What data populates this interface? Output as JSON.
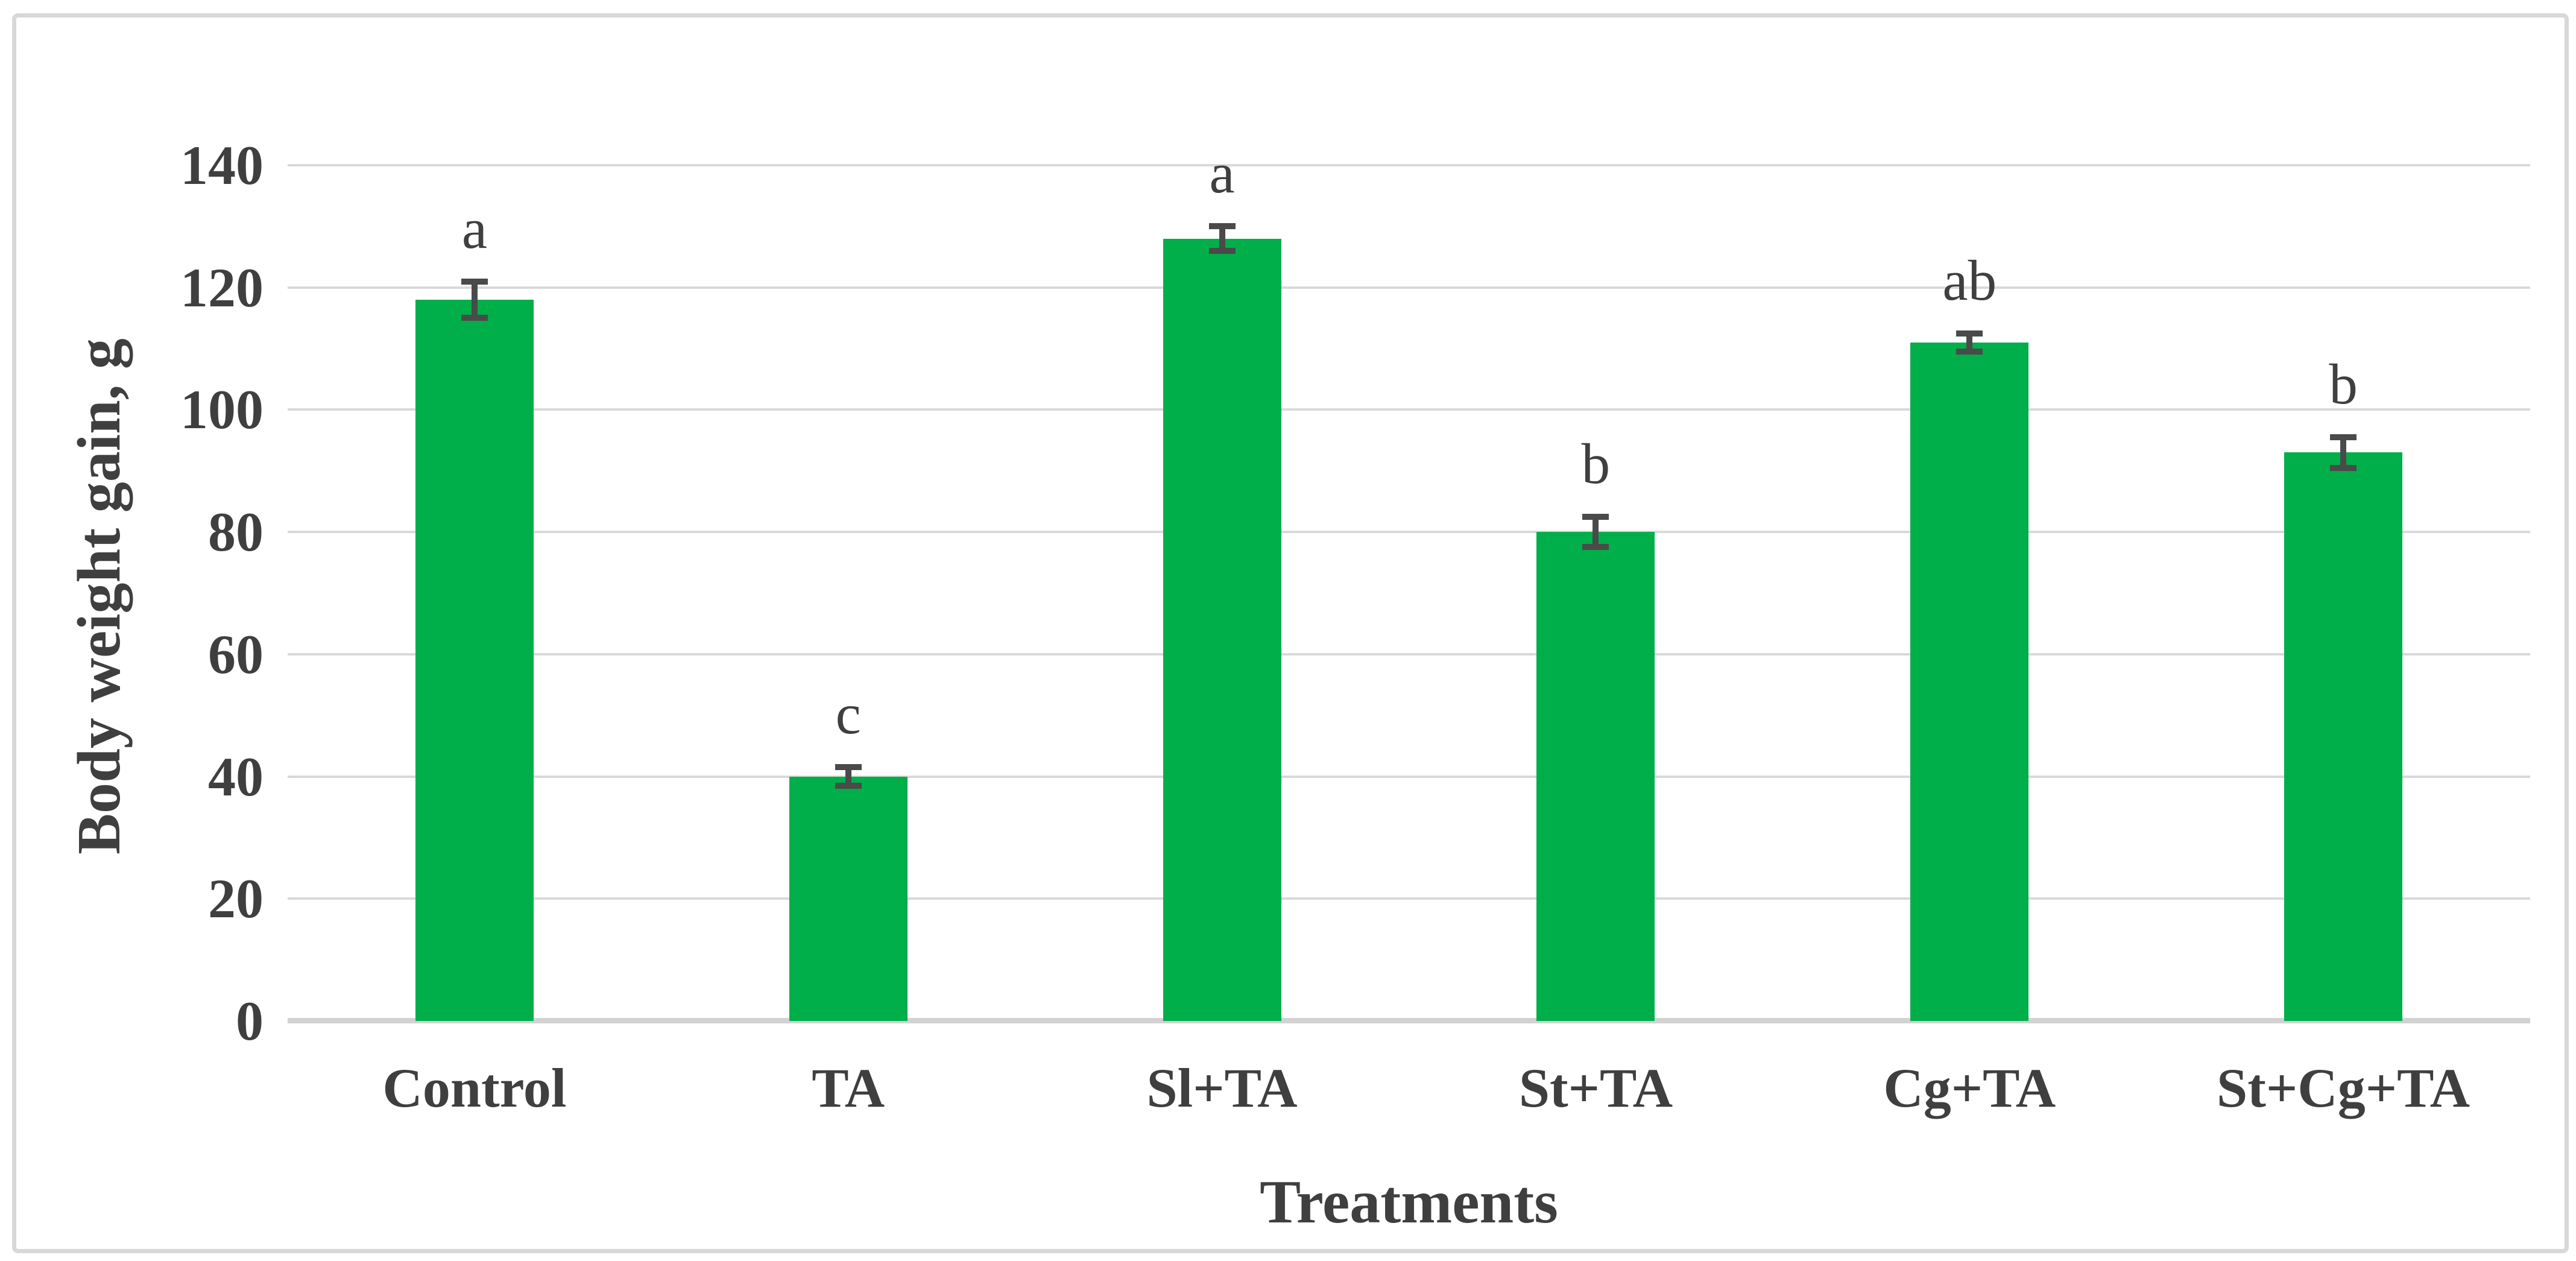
{
  "figure": {
    "background": "#FFFFFF",
    "border_color": "#D8D8D8"
  },
  "chart_data": {
    "type": "bar",
    "title": "",
    "categories": [
      "Control",
      "TA",
      "Sl+TA",
      "St+TA",
      "Cg+TA",
      "St+Cg+TA"
    ],
    "values": [
      118,
      40,
      128,
      80,
      111,
      93
    ],
    "errors": [
      3,
      1.5,
      2,
      2.5,
      1.5,
      2.5
    ],
    "sig_letters": [
      "a",
      "c",
      "a",
      "b",
      "ab",
      "b"
    ],
    "xlabel": "Treatments",
    "ylabel": "Body weight gain, g",
    "ylim": [
      0,
      140
    ],
    "ytick_step": 20,
    "yticks": [
      0,
      20,
      40,
      60,
      80,
      100,
      120,
      140
    ],
    "grid": "horizontal-only",
    "legend": "none",
    "bar_color": "#00AE4A",
    "error_bar_color": "#4A4A4A",
    "grid_color": "#D9D9D9",
    "axis_line_color": "#D2D2D2",
    "text_color": "#3F3F3F"
  }
}
